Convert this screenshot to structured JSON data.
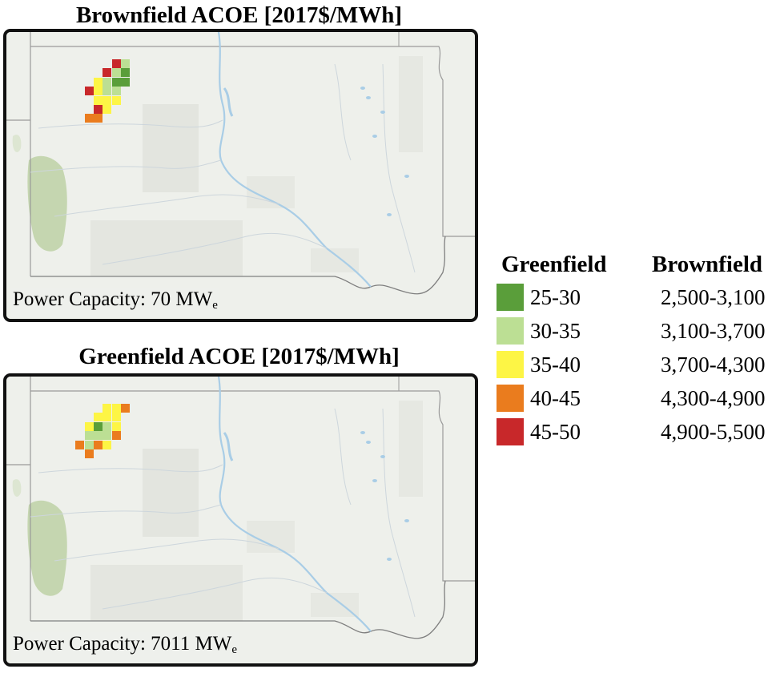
{
  "panels": [
    {
      "title": "Brownfield ACOE [2017$/MWh]",
      "capacity_label": "Power Capacity: 70 MW",
      "capacity_subscript": "e"
    },
    {
      "title": "Greenfield ACOE [2017$/MWh]",
      "capacity_label": "Power Capacity: 7011 MW",
      "capacity_subscript": "e"
    }
  ],
  "legend": {
    "greenfield_header": "Greenfield",
    "brownfield_header": "Brownfield",
    "rows": [
      {
        "greenfield": "25-30",
        "brownfield": "2,500-3,100",
        "color": "#5a9e3a"
      },
      {
        "greenfield": "30-35",
        "brownfield": "3,100-3,700",
        "color": "#bcdf94"
      },
      {
        "greenfield": "35-40",
        "brownfield": "3,700-4,300",
        "color": "#fdf545"
      },
      {
        "greenfield": "40-45",
        "brownfield": "4,300-4,900",
        "color": "#ea7c1e"
      },
      {
        "greenfield": "45-50",
        "brownfield": "4,900-5,500",
        "color": "#c8282a"
      }
    ]
  }
}
